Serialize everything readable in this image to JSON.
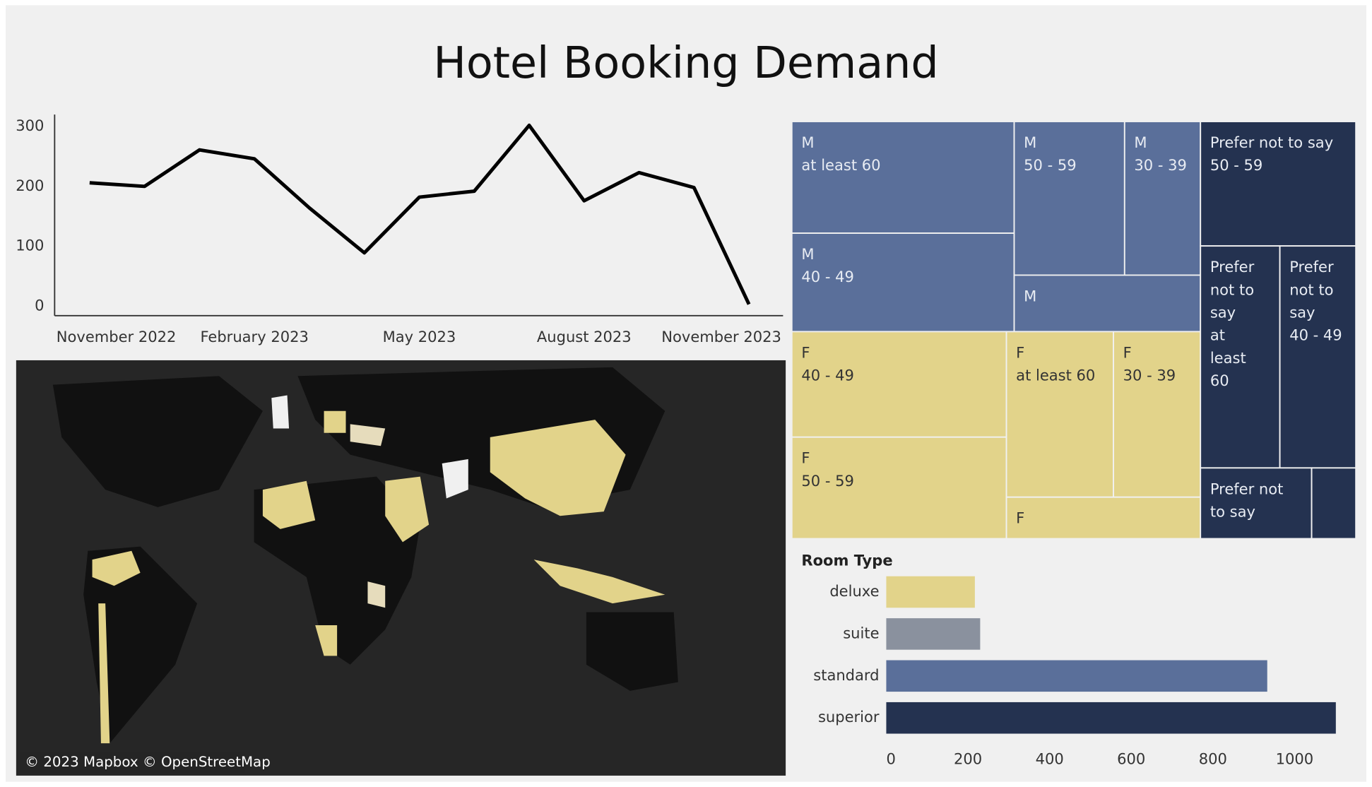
{
  "title": "Hotel Booking Demand",
  "chart_data": [
    {
      "type": "line",
      "color": "#000000",
      "categories": [
        "November 2022",
        null,
        null,
        "February 2023",
        null,
        null,
        "May 2023",
        null,
        null,
        "August 2023",
        null,
        null,
        "November 2023"
      ],
      "values": [
        206,
        200,
        261,
        246,
        164,
        89,
        182,
        192,
        302,
        176,
        223,
        198,
        3
      ],
      "ylim": [
        -16,
        320
      ],
      "yticks": [
        0,
        100,
        200,
        300
      ]
    },
    {
      "type": "map",
      "annotation": "© 2023 Mapbox © OpenStreetMap"
    },
    {
      "type": "treemap",
      "groups": [
        {
          "name": "M",
          "color": "#5a6f9a",
          "text_color": "#e8ecf3",
          "leaves": [
            {
              "label": "at least 60",
              "value": 262
            },
            {
              "label": "40 - 49",
              "value": 231
            },
            {
              "label": "50 - 59",
              "value": 179
            },
            {
              "label": "30 - 39",
              "value": 123
            },
            {
              "value": 111
            }
          ]
        },
        {
          "name": "F",
          "color": "#e2d38a",
          "text_color": "#333333",
          "leaves": [
            {
              "label": "40 - 49",
              "value": 239
            },
            {
              "label": "50 - 59",
              "value": 230
            },
            {
              "label": "at least 60",
              "value": 187
            },
            {
              "label": "30 - 39",
              "value": 152
            },
            {
              "value": 85
            }
          ]
        },
        {
          "name": "Prefer not to say",
          "color": "#243250",
          "text_color": "#e8ecf3",
          "leaves": [
            {
              "label": "50 - 59",
              "value": 204
            },
            {
              "label": "at least 60",
              "value": 186
            },
            {
              "label": "40 - 49",
              "value": 178
            },
            {
              "value": 83
            },
            {
              "value": 33,
              "unlabeled": true
            }
          ]
        }
      ]
    },
    {
      "type": "bar",
      "orientation": "horizontal",
      "axis_label": "Room Type",
      "categories": [
        "deluxe",
        "suite",
        "standard",
        "superior"
      ],
      "values": [
        217,
        230,
        933,
        1101
      ],
      "colors": [
        "#e2d38a",
        "#8a919e",
        "#5a6f9a",
        "#243250"
      ],
      "xlim": [
        0,
        1150
      ],
      "xticks": [
        0,
        200,
        400,
        600,
        800,
        1000
      ]
    }
  ]
}
